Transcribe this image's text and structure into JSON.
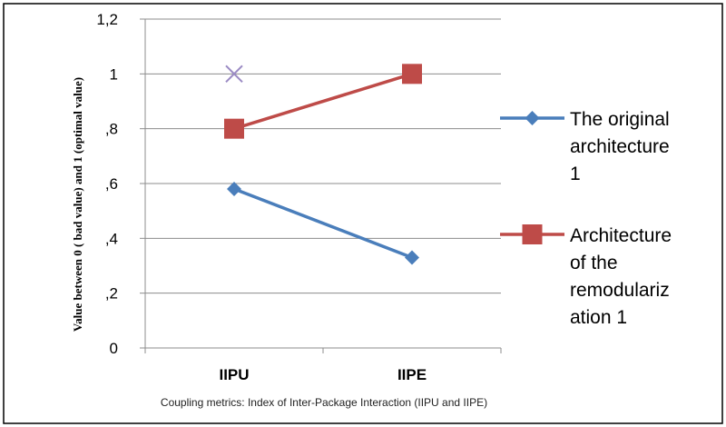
{
  "chart_data": {
    "type": "line",
    "categories": [
      "IIPU",
      "IIPE"
    ],
    "ylabel": "Value between 0 ( bad value)  and 1 (optimal value)",
    "xlabel": "Coupling  metrics: Index of Inter-Package Interaction (IIPU and  IIPE)",
    "ylim": [
      0,
      1.2
    ],
    "ytick_labels": [
      "0",
      ",2",
      ",4",
      ",6",
      ",8",
      "1",
      "1,2"
    ],
    "grid": true,
    "legend_placement": "right",
    "series": [
      {
        "name": "The original architecture 1",
        "legend_lines": [
          "The original",
          "architecture",
          "1"
        ],
        "values": [
          0.58,
          0.33
        ],
        "color": "#4a7ebb",
        "marker": "diamond"
      },
      {
        "name": "Architecture of the remodularization 1",
        "legend_lines": [
          "Architecture",
          "of the",
          "remodulariz",
          "ation 1"
        ],
        "values": [
          0.8,
          1.0
        ],
        "color": "#be4b48",
        "marker": "square"
      }
    ],
    "annotations": [
      {
        "category": "IIPU",
        "value": 1.0,
        "marker": "x",
        "color": "#9b8bc4"
      }
    ]
  }
}
